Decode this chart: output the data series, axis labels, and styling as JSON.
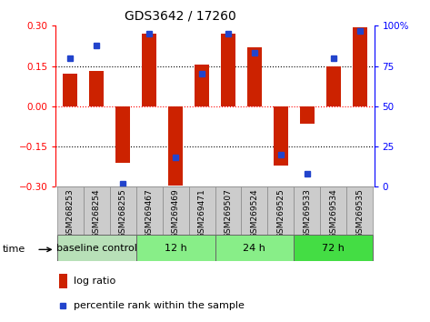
{
  "title": "GDS3642 / 17260",
  "samples": [
    "GSM268253",
    "GSM268254",
    "GSM268255",
    "GSM269467",
    "GSM269469",
    "GSM269471",
    "GSM269507",
    "GSM269524",
    "GSM269525",
    "GSM269533",
    "GSM269534",
    "GSM269535"
  ],
  "log_ratio": [
    0.12,
    0.13,
    -0.21,
    0.27,
    -0.295,
    0.155,
    0.27,
    0.22,
    -0.22,
    -0.065,
    0.15,
    0.295
  ],
  "percentile_rank": [
    80,
    88,
    2,
    95,
    18,
    70,
    95,
    83,
    20,
    8,
    80,
    97
  ],
  "group_data": [
    {
      "label": "baseline control",
      "start": 0,
      "end": 3,
      "color": "#b8e0b8"
    },
    {
      "label": "12 h",
      "start": 3,
      "end": 6,
      "color": "#88ee88"
    },
    {
      "label": "24 h",
      "start": 6,
      "end": 9,
      "color": "#88ee88"
    },
    {
      "label": "72 h",
      "start": 9,
      "end": 12,
      "color": "#44dd44"
    }
  ],
  "ylim_left": [
    -0.3,
    0.3
  ],
  "ylim_right": [
    0,
    100
  ],
  "yticks_left": [
    -0.3,
    -0.15,
    0,
    0.15,
    0.3
  ],
  "yticks_right": [
    0,
    25,
    50,
    75,
    100
  ],
  "hlines_black": [
    -0.15,
    0.15
  ],
  "hline_red": 0,
  "bar_color": "#cc2200",
  "dot_color": "#2244cc",
  "sample_box_color": "#cccccc",
  "sample_box_edge": "#888888",
  "title_fontsize": 10,
  "tick_fontsize": 7.5,
  "sample_fontsize": 6.5,
  "group_fontsize": 8,
  "legend_fontsize": 8
}
